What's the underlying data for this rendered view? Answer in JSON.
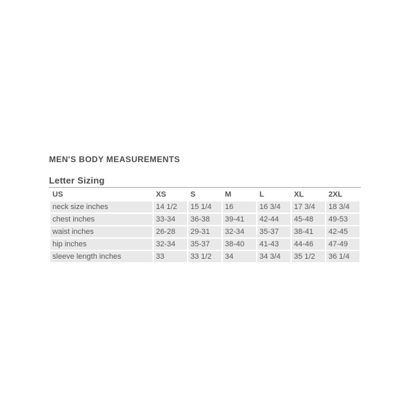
{
  "section": {
    "title": "MEN'S BODY MEASUREMENTS",
    "subtitle": "Letter Sizing"
  },
  "colors": {
    "page_background": "#ffffff",
    "heading_text": "#4d4d4d",
    "table_text": "#5a5a5a",
    "row_background": "#e9e9e9",
    "header_background": "#ffffff",
    "table_top_border": "#a8a8a8"
  },
  "chart_data": {
    "type": "table",
    "title": "MEN'S BODY MEASUREMENTS",
    "subtitle": "Letter Sizing",
    "columns": [
      "US",
      "XS",
      "S",
      "M",
      "L",
      "XL",
      "2XL"
    ],
    "rows": [
      {
        "label": "neck size inches",
        "values": [
          "14 1/2",
          "15 1/4",
          "16",
          "16 3/4",
          "17 3/4",
          "18 3/4"
        ]
      },
      {
        "label": "chest inches",
        "values": [
          "33-34",
          "36-38",
          "39-41",
          "42-44",
          "45-48",
          "49-53"
        ]
      },
      {
        "label": "waist inches",
        "values": [
          "26-28",
          "29-31",
          "32-34",
          "35-37",
          "38-41",
          "42-45"
        ]
      },
      {
        "label": "hip inches",
        "values": [
          "32-34",
          "35-37",
          "38-40",
          "41-43",
          "44-46",
          "47-49"
        ]
      },
      {
        "label": "sleeve length inches",
        "values": [
          "33",
          "33 1/2",
          "34",
          "34 3/4",
          "35 1/2",
          "36 1/4"
        ]
      }
    ],
    "layout": {
      "header_row": true,
      "striped": false,
      "grid": "cellspacing-white-gaps",
      "legend": "none"
    }
  }
}
